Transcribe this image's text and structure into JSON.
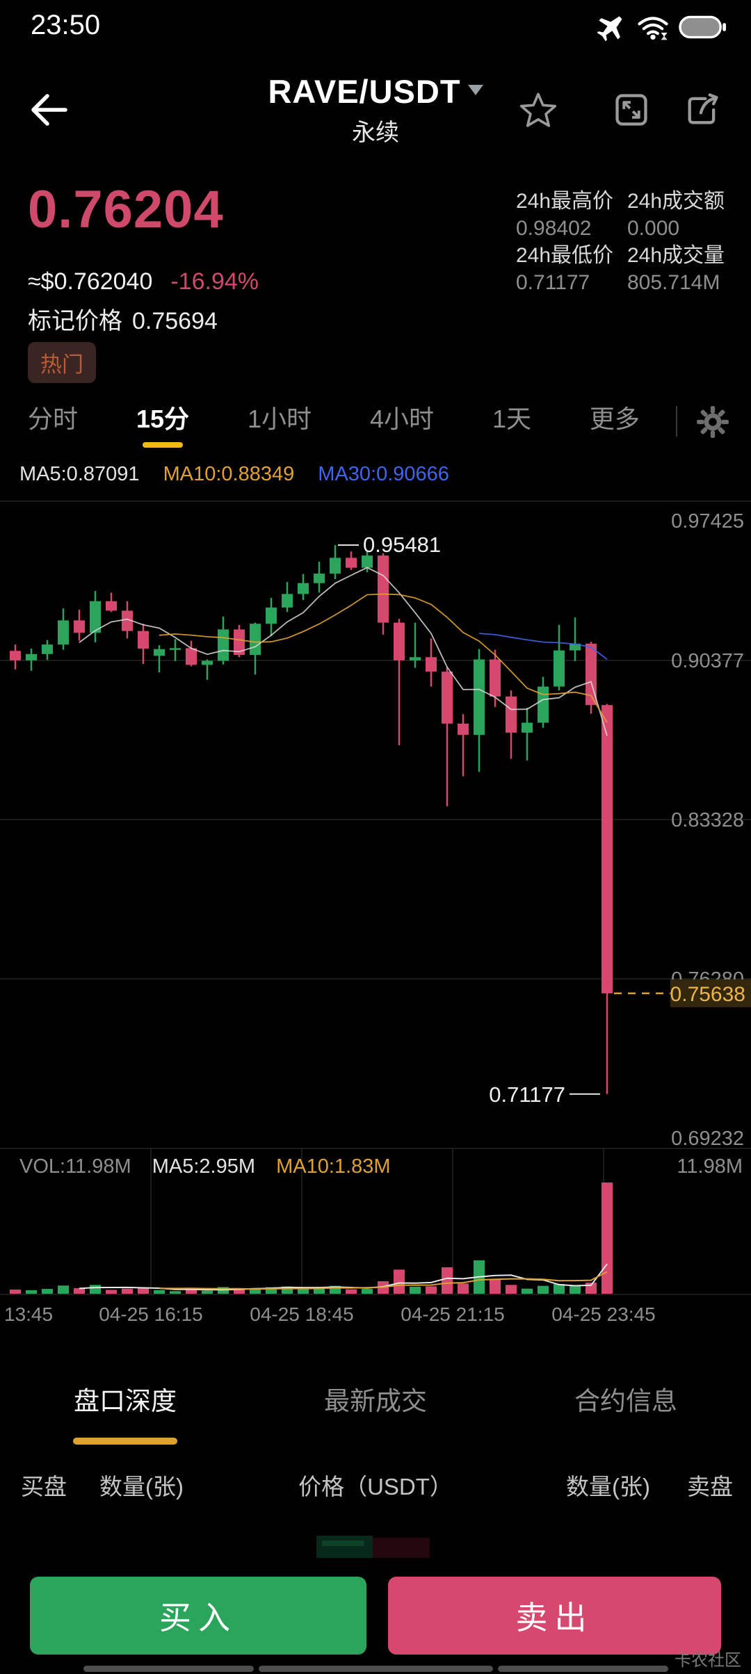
{
  "status_bar": {
    "time": "23:50"
  },
  "header": {
    "title": "RAVE/USDT",
    "subtitle": "永续"
  },
  "price_panel": {
    "last_price": "0.76204",
    "usd_price": "≈$0.762040",
    "change_pct": "-16.94%",
    "mark_price_label": "标记价格",
    "mark_price": "0.75694",
    "tag": "热门"
  },
  "stats": {
    "high_label": "24h最高价",
    "high": "0.98402",
    "turnover_label": "24h成交额",
    "turnover": "0.000",
    "low_label": "24h最低价",
    "low": "0.71177",
    "volume_label": "24h成交量",
    "volume": "805.714M"
  },
  "timeframe_tabs": {
    "items": [
      "分时",
      "15分",
      "1小时",
      "4小时",
      "1天",
      "更多"
    ],
    "active": "15分"
  },
  "ma_row": {
    "ma5": "MA5:0.87091",
    "ma10": "MA10:0.88349",
    "ma30": "MA30:0.90666"
  },
  "volume_row": {
    "vol": "VOL:11.98M",
    "ma5": "MA5:2.95M",
    "ma10": "MA10:1.83M",
    "max_label": "11.98M"
  },
  "chart_data": {
    "type": "candlestick",
    "interval": "15m",
    "title": "RAVE/USDT perpetual 15-minute k-line",
    "y_axis_labels": [
      "0.97425",
      "0.90377",
      "0.83328",
      "0.76280",
      "0.69232"
    ],
    "x_axis_labels": [
      "13:45",
      "04-25 16:15",
      "04-25 18:45",
      "04-25 21:15",
      "04-25 23:45"
    ],
    "annotations": {
      "high": "0.95481",
      "low": "0.71177",
      "last": "0.75638"
    },
    "volume_max": 11.98,
    "candles_format": [
      "open",
      "high",
      "low",
      "close",
      "volume_M"
    ],
    "candles": [
      [
        0.908,
        0.9108,
        0.8998,
        0.9038,
        0.45
      ],
      [
        0.9038,
        0.909,
        0.8992,
        0.9066,
        0.38
      ],
      [
        0.9066,
        0.9128,
        0.904,
        0.9108,
        0.52
      ],
      [
        0.9108,
        0.9268,
        0.9085,
        0.9215,
        0.88
      ],
      [
        0.9215,
        0.9262,
        0.9125,
        0.916,
        0.6
      ],
      [
        0.916,
        0.9345,
        0.9118,
        0.93,
        0.95
      ],
      [
        0.93,
        0.9338,
        0.9252,
        0.9258,
        0.42
      ],
      [
        0.9258,
        0.93,
        0.9135,
        0.9168,
        0.55
      ],
      [
        0.9168,
        0.92,
        0.9022,
        0.909,
        0.68
      ],
      [
        0.9058,
        0.9105,
        0.8985,
        0.9088,
        0.4
      ],
      [
        0.9088,
        0.9132,
        0.9035,
        0.9092,
        0.28
      ],
      [
        0.9092,
        0.9125,
        0.9012,
        0.9018,
        0.45
      ],
      [
        0.9018,
        0.9042,
        0.8952,
        0.9036,
        0.33
      ],
      [
        0.9036,
        0.9232,
        0.902,
        0.9175,
        0.72
      ],
      [
        0.9175,
        0.9195,
        0.9052,
        0.9062,
        0.58
      ],
      [
        0.9062,
        0.9205,
        0.8975,
        0.92,
        0.62
      ],
      [
        0.92,
        0.9315,
        0.9145,
        0.9272,
        0.7
      ],
      [
        0.9272,
        0.9385,
        0.9252,
        0.9332,
        0.78
      ],
      [
        0.9332,
        0.942,
        0.9305,
        0.938,
        0.66
      ],
      [
        0.938,
        0.9475,
        0.9338,
        0.9422,
        0.59
      ],
      [
        0.9422,
        0.95481,
        0.9398,
        0.9492,
        0.85
      ],
      [
        0.9492,
        0.952,
        0.9438,
        0.9448,
        0.48
      ],
      [
        0.9448,
        0.9525,
        0.9428,
        0.9502,
        0.52
      ],
      [
        0.9502,
        0.9512,
        0.9152,
        0.9205,
        1.35
      ],
      [
        0.9205,
        0.9222,
        0.8662,
        0.9038,
        2.6
      ],
      [
        0.9038,
        0.9205,
        0.9005,
        0.9052,
        0.75
      ],
      [
        0.9052,
        0.9135,
        0.8922,
        0.8988,
        0.8
      ],
      [
        0.8988,
        0.901,
        0.8392,
        0.8758,
        2.85
      ],
      [
        0.8758,
        0.88,
        0.8525,
        0.8708,
        1.1
      ],
      [
        0.8708,
        0.9088,
        0.8545,
        0.9042,
        3.6
      ],
      [
        0.9042,
        0.9085,
        0.8832,
        0.8878,
        1.5
      ],
      [
        0.8878,
        0.8905,
        0.8602,
        0.8718,
        0.95
      ],
      [
        0.8718,
        0.8828,
        0.8595,
        0.8762,
        0.55
      ],
      [
        0.8762,
        0.8965,
        0.874,
        0.8922,
        0.85
      ],
      [
        0.8922,
        0.9195,
        0.8905,
        0.9082,
        1.05
      ],
      [
        0.9082,
        0.9228,
        0.9035,
        0.9112,
        0.9
      ],
      [
        0.9112,
        0.912,
        0.8802,
        0.884,
        1.2
      ],
      [
        0.884,
        0.8845,
        0.71177,
        0.75638,
        11.98
      ]
    ]
  },
  "bottom_tabs": {
    "items": [
      "盘口深度",
      "最新成交",
      "合约信息"
    ],
    "active": "盘口深度"
  },
  "orderbook_header": {
    "buy": "买盘",
    "buy_qty": "数量(张)",
    "price": "价格（USDT）",
    "sell_qty": "数量(张)",
    "sell": "卖盘"
  },
  "actions": {
    "buy": "买入",
    "sell": "卖出"
  },
  "watermark": "卡农社区",
  "colors": {
    "up": "#2ca55c",
    "down": "#d6486e",
    "accent_yellow": "#f3ba12",
    "accent_orange": "#dfa232",
    "last_price_text": "#eab54a",
    "ma30_blue": "#4263eb"
  }
}
